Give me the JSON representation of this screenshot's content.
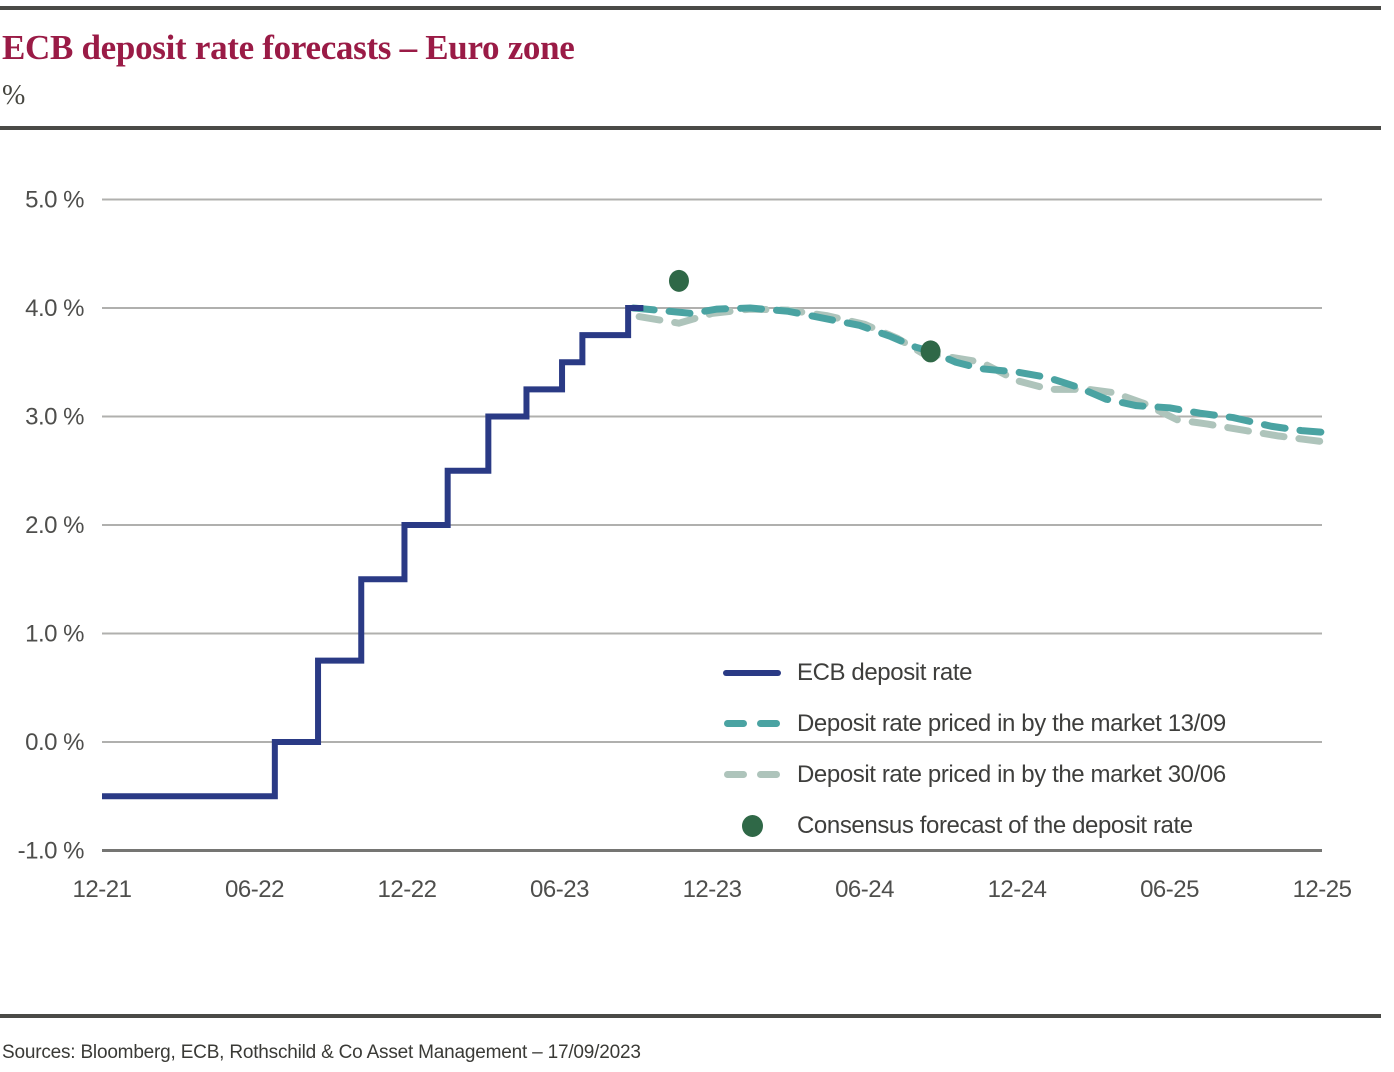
{
  "header": {
    "title": "ECB deposit rate forecasts – Euro zone",
    "unit_label": "%"
  },
  "footer": {
    "sources": "Sources: Bloomberg, ECB, Rothschild & Co Asset Management – 17/09/2023"
  },
  "colors": {
    "title": "#9a1b46",
    "rules": "#4a4a47",
    "grid": "#b0b0ae",
    "grid_dark": "#757573",
    "axis_text": "#4e4e4c",
    "legend_text": "#3e3e3c",
    "ecb_line": "#2a3a85",
    "market_1309": "#4aa3a2",
    "market_3006": "#aec4bb",
    "consensus_dot": "#2f6847"
  },
  "legend": {
    "items": [
      {
        "label": "ECB deposit rate",
        "marker": "solid-line",
        "color": "#2a3a85"
      },
      {
        "label": "Deposit rate priced in by the market 13/09",
        "marker": "dashes",
        "color": "#4aa3a2"
      },
      {
        "label": "Deposit rate priced in by the market 30/06",
        "marker": "dashes",
        "color": "#aec4bb"
      },
      {
        "label": "Consensus forecast of the deposit rate",
        "marker": "dot",
        "color": "#2f6847"
      }
    ]
  },
  "chart_data": {
    "type": "line",
    "title": "ECB deposit rate forecasts – Euro zone",
    "xlabel": "",
    "ylabel": "%",
    "ylim": [
      -1.0,
      5.0
    ],
    "grid": true,
    "legend_position": "center-right",
    "x_unit": "months after Dec-2021 (ticks formatted MM-YY)",
    "x_axis": {
      "tick_months": [
        0,
        6,
        12,
        18,
        24,
        30,
        36,
        42,
        48
      ],
      "tick_labels": [
        "12-21",
        "06-22",
        "12-22",
        "06-23",
        "12-23",
        "06-24",
        "12-24",
        "06-25",
        "12-25"
      ]
    },
    "y_axis": {
      "tick_values": [
        5.0,
        4.0,
        3.0,
        2.0,
        1.0,
        0.0,
        -1.0
      ],
      "tick_labels": [
        "5.0 %",
        "4.0 %",
        "3.0 %",
        "2.0 %",
        "1.0 %",
        "0.0 %",
        "-1.0 %"
      ]
    },
    "series": [
      {
        "name": "ECB deposit rate",
        "type": "step",
        "color": "#2a3a85",
        "points": [
          [
            0,
            -0.5
          ],
          [
            6.8,
            0.0
          ],
          [
            8.5,
            0.75
          ],
          [
            10.2,
            1.5
          ],
          [
            11.9,
            2.0
          ],
          [
            13.6,
            2.5
          ],
          [
            15.2,
            3.0
          ],
          [
            16.7,
            3.25
          ],
          [
            18.1,
            3.5
          ],
          [
            18.9,
            3.75
          ],
          [
            20.7,
            4.0
          ],
          [
            21.3,
            4.0
          ]
        ]
      },
      {
        "name": "Deposit rate priced in by the market 13/09",
        "type": "dashed-line",
        "color": "#4aa3a2",
        "points": [
          [
            20.9,
            4.0
          ],
          [
            22.3,
            3.97
          ],
          [
            23.2,
            3.95
          ],
          [
            24.2,
            3.99
          ],
          [
            25.5,
            4.0
          ],
          [
            27,
            3.97
          ],
          [
            28.5,
            3.9
          ],
          [
            29.8,
            3.84
          ],
          [
            31,
            3.74
          ],
          [
            32,
            3.64
          ],
          [
            32.6,
            3.6
          ],
          [
            33.6,
            3.5
          ],
          [
            34.6,
            3.44
          ],
          [
            36,
            3.41
          ],
          [
            37.2,
            3.36
          ],
          [
            38.4,
            3.27
          ],
          [
            39.5,
            3.16
          ],
          [
            40.7,
            3.1
          ],
          [
            42,
            3.08
          ],
          [
            43.2,
            3.03
          ],
          [
            44.5,
            2.99
          ],
          [
            46,
            2.91
          ],
          [
            47.2,
            2.87
          ],
          [
            48.3,
            2.85
          ]
        ]
      },
      {
        "name": "Deposit rate priced in by the market 30/06",
        "type": "dashed-line",
        "color": "#aec4bb",
        "points": [
          [
            20.9,
            3.93
          ],
          [
            22.7,
            3.86
          ],
          [
            24,
            3.95
          ],
          [
            25.5,
            3.99
          ],
          [
            27,
            3.98
          ],
          [
            28.5,
            3.93
          ],
          [
            30,
            3.85
          ],
          [
            31.3,
            3.72
          ],
          [
            32.3,
            3.58
          ],
          [
            33.3,
            3.55
          ],
          [
            34.6,
            3.5
          ],
          [
            36,
            3.33
          ],
          [
            37.3,
            3.25
          ],
          [
            38.8,
            3.25
          ],
          [
            39.8,
            3.22
          ],
          [
            41,
            3.12
          ],
          [
            42.3,
            2.97
          ],
          [
            43.5,
            2.93
          ],
          [
            45,
            2.87
          ],
          [
            46.3,
            2.82
          ],
          [
            47.3,
            2.79
          ],
          [
            48.3,
            2.76
          ]
        ]
      },
      {
        "name": "Consensus forecast of the deposit rate",
        "type": "scatter",
        "color": "#2f6847",
        "points": [
          [
            22.7,
            4.25
          ],
          [
            32.6,
            3.6
          ]
        ]
      }
    ]
  }
}
